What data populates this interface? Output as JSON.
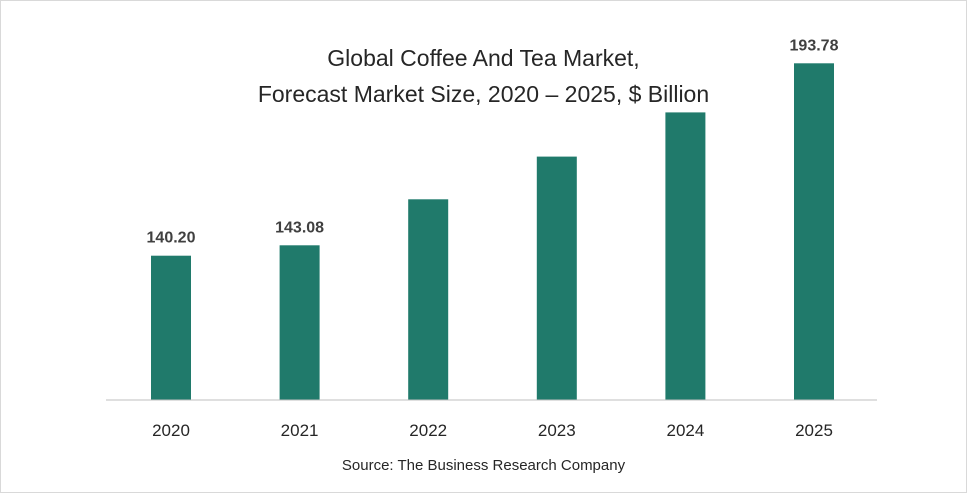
{
  "chart_data": {
    "type": "bar",
    "title_line1": "Global Coffee And Tea Market,",
    "title_line2": "Forecast Market Size, 2020 – 2025, $ Billion",
    "categories": [
      "2020",
      "2021",
      "2022",
      "2023",
      "2024",
      "2025"
    ],
    "values": [
      140.2,
      143.08,
      155.9,
      167.8,
      180.1,
      193.78
    ],
    "data_labels": [
      "140.20",
      "143.08",
      "",
      "",
      "",
      "193.78"
    ],
    "bar_color": "#207a6b",
    "grid": false,
    "legend": "none",
    "source": "Source: The Business Research Company"
  }
}
